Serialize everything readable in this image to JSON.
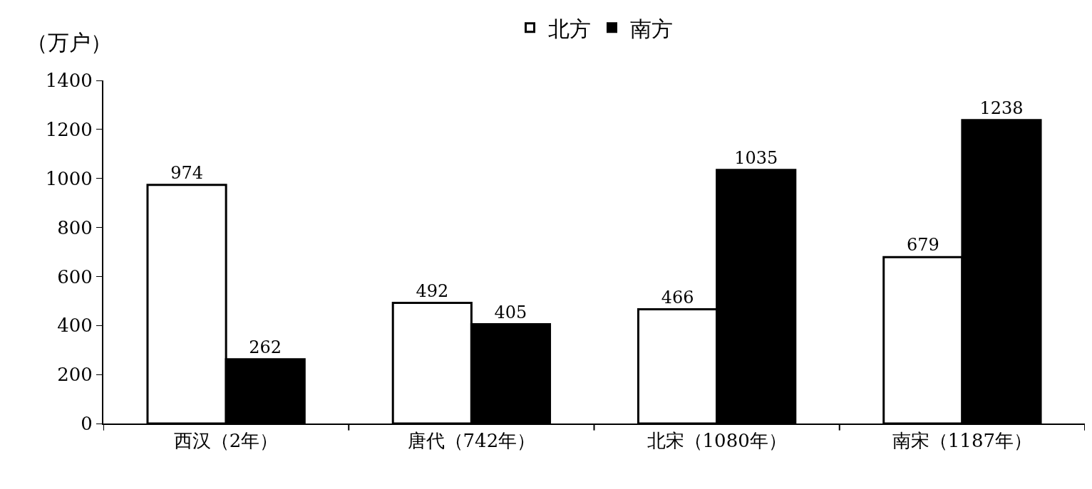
{
  "chart_data": {
    "type": "bar",
    "ylabel": "（万户）",
    "categories": [
      "西汉（2年）",
      "唐代（742年）",
      "北宋（1080年）",
      "南宋（1187年）"
    ],
    "series": [
      {
        "name": "北方",
        "color": "#ffffff",
        "values": [
          974,
          492,
          466,
          679
        ]
      },
      {
        "name": "南方",
        "color": "#000000",
        "values": [
          262,
          405,
          1035,
          1238
        ]
      }
    ],
    "ylim": [
      0,
      1400
    ],
    "yticks": [
      0,
      200,
      400,
      600,
      800,
      1000,
      1200,
      1400
    ],
    "legend": "top",
    "data_labels": true
  }
}
